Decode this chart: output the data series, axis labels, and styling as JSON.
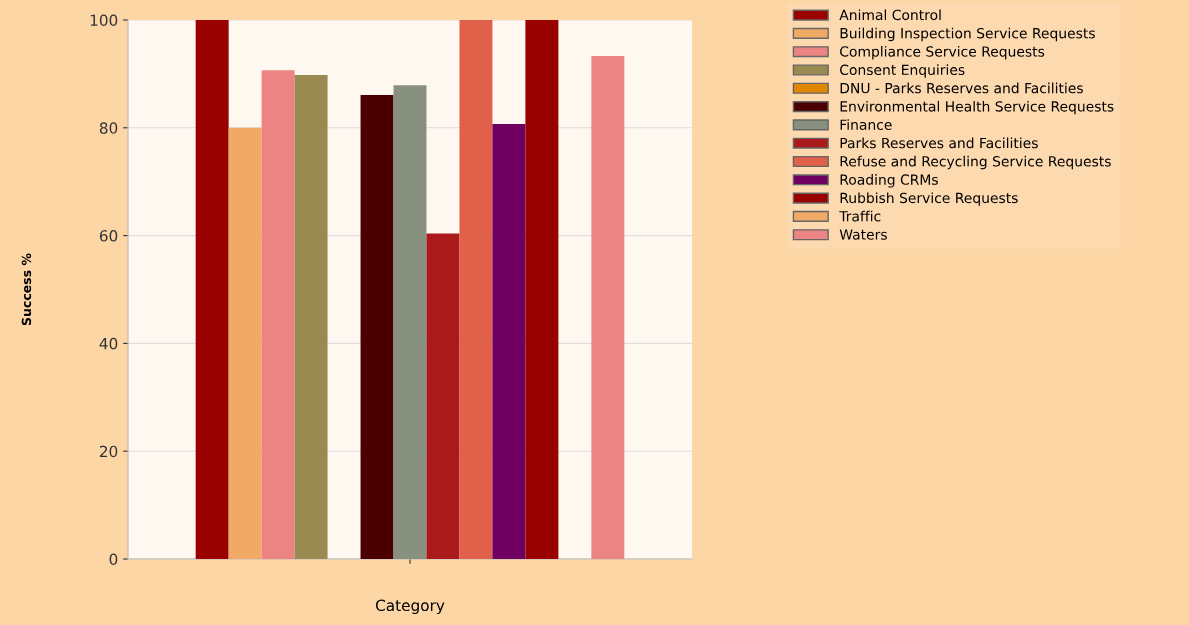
{
  "chart_data": {
    "type": "bar",
    "xlabel": "Category",
    "ylabel": "Success %",
    "categories": [
      null
    ],
    "ylim": [
      0,
      100
    ],
    "yticks": [
      0,
      20,
      40,
      60,
      80,
      100
    ],
    "grid": "y",
    "legend": "right",
    "series": [
      {
        "name": "Animal Control",
        "color": "#990000",
        "values": [
          100
        ]
      },
      {
        "name": "Building Inspection Service Requests",
        "color": "#f0aa66",
        "values": [
          80
        ]
      },
      {
        "name": "Compliance Service Requests",
        "color": "#ec8484",
        "values": [
          90.7
        ]
      },
      {
        "name": "Consent Enquiries",
        "color": "#988a50",
        "values": [
          89.8
        ]
      },
      {
        "name": "DNU - Parks Reserves and Facilities",
        "color": "#e08800",
        "values": [
          null
        ]
      },
      {
        "name": "Environmental Health Service Requests",
        "color": "#4a0000",
        "values": [
          86.1
        ]
      },
      {
        "name": "Finance",
        "color": "#889080",
        "values": [
          87.9
        ]
      },
      {
        "name": "Parks Reserves and Facilities",
        "color": "#aa1a1a",
        "values": [
          60.4
        ]
      },
      {
        "name": "Refuse and Recycling Service Requests",
        "color": "#e0604a",
        "values": [
          100
        ]
      },
      {
        "name": "Roading CRMs",
        "color": "#700060",
        "values": [
          80.7
        ]
      },
      {
        "name": "Rubbish Service Requests",
        "color": "#990000",
        "values": [
          100
        ]
      },
      {
        "name": "Traffic",
        "color": "#f0aa66",
        "values": [
          null
        ]
      },
      {
        "name": "Waters",
        "color": "#ec8484",
        "values": [
          93.3
        ]
      }
    ]
  }
}
